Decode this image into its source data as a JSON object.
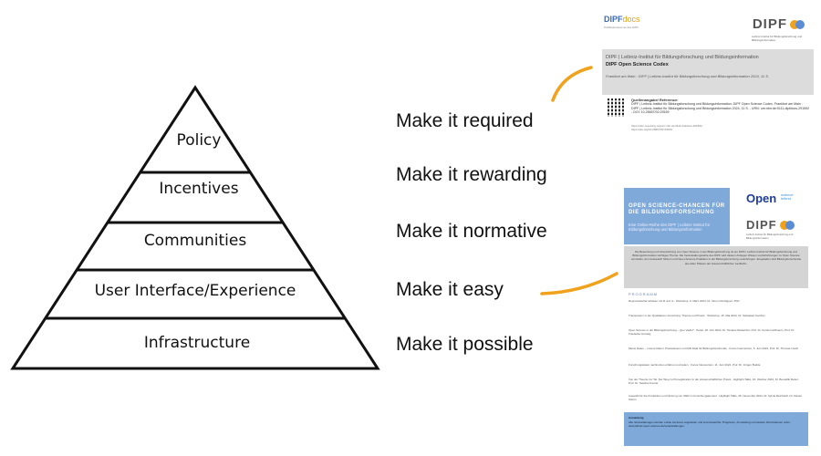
{
  "pyramid": {
    "layers": [
      "Policy",
      "Incentives",
      "Communities",
      "User Interface/Experience",
      "Infrastructure"
    ]
  },
  "slogans": [
    "Make it required",
    "Make it rewarding",
    "Make it normative",
    "Make it easy",
    "Make it possible"
  ],
  "colors": {
    "arrow": "#f0a21c",
    "banner": "#7fa9d9",
    "grey_box": "#dcdcdc",
    "dipf_orange": "#f0a21c",
    "dipf_blue": "#5b8dd6"
  },
  "doc1": {
    "logo_left_a": "DIPF",
    "logo_left_b": "docs",
    "logo_left_sub": "Publikationsserver des DIPF",
    "logo_right": "DIPF",
    "logo_right_sub": "Leibniz-Institut für Bildungsforschung und Bildungsinformation",
    "org_line": "DIPF | Leibniz-Institut für Bildungsforschung und Bildungsinformation",
    "title": "DIPF Open Science Codex",
    "imprint": "Frankfurt am Main : DIPF | Leibniz-Institut für Bildungsforschung und Bildungsinformation 2024, 11 S.",
    "ref_head": "Quellenangabe/ Reference:",
    "ref_body": "DIPF | Leibniz-Institut für Bildungsforschung und Bildungsinformation: DIPF Open Science Codex. Frankfurt am Main : DIPF | Leibniz-Institut für Bildungsforschung und Bildungsinformation 2024, 11 S. - URN: urn:nbn:de:0111-dipfdocs-291592 - DOI: 10.25657/02:29159",
    "url1": "https://nbn-resolving.org/urn:nbn:de:0111-dipfdocs-291592",
    "url2": "https://doi.org/10.25657/02:29159"
  },
  "doc2": {
    "banner_title": "OPEN SCIENCE-CHANCEN FÜR DIE BILDUNGSFORSCHUNG",
    "banner_sub": "Eine Online-Reihe des DIPF | Leibniz-Institut für Bildungsforschung und Bildungsinformation",
    "open_logo": "Open",
    "open_sub_1": "science",
    "open_sub_2": "leibniz",
    "dipf_logo": "DIPF",
    "dipf_sub": "Leibniz-Institut für Bildungsforschung und Bildungsinformation",
    "intro": "Die Bewertung und Unterstützung von Open Science in der Bildungsforschung ist ein DIPF | Leibniz-Institut für Bildungsforschung und Bildungsinformation wichtiges Thema. Die Veranstaltungsreihe des DIPF wird diesem Anliegen Wissen und Erfahrungen zu Open Science vermitteln, den Austausch fördern und Open-Science-Praktiken in der Bildungsforschung voranbringen. Eingeladen sind Bildungsforschende aus allen Phasen der wissenschaftlichen Laufbahn.",
    "program_label": "PROGRAMM",
    "events": [
      "Reproduzierbar arbeiten mit R und rs · Workshop, 6. März 2024, Dr. Simon Rodriguez, PhD",
      "Transparenz in der Qualitativen Forschung: Theorie und Praxis · Workshop, 15. Mai 2024, Dr. Sebastian Karcher",
      "Open Science in der Bildungsforschung – Quo Vadis? · Panel, 18. Juni 2024, Dr. Tamara Diederichs, Prof. Dr. Kerstin Hoffmann, Prof. Dr. Friederike Hertwig",
      "Meine Daten – unsere Daten: Praxiswissen zu FAIR Data für Bildungsforschende · Focus Intervention, 5. Juni 2024, Prof. Dr. Thomas Lösch",
      "Forschungsdaten nachnutzen erfahren und teilen · Focus Intervention, 11. Juni 2024, Prof. Dr. Jürgen Budde",
      "Von der Theorie zur Tat: Der Weg zu Preregistration in der wissenschaftlichen Praxis · Highlight Talks, 16. Oktober 2024, Dr. Benedikt Reiter, Prof. Dr. Sascha Kreuter",
      "Auswahl für die Produktion und Nutzung von OER im Forschungskontext · Highlight Talks, 26. November 2024, Dr. Sylvia Reinhardt, Dr. Daniel Schön"
    ],
    "footer_head": "Anmeldung",
    "footer_body": "Alle Veranstaltungen werden online via Zoom angeboten und sind kostenfrei. Programm, Anmeldung und weitere Informationen unter:",
    "footer_url": "www.leibniz-open-science.de/veranstaltungen"
  }
}
